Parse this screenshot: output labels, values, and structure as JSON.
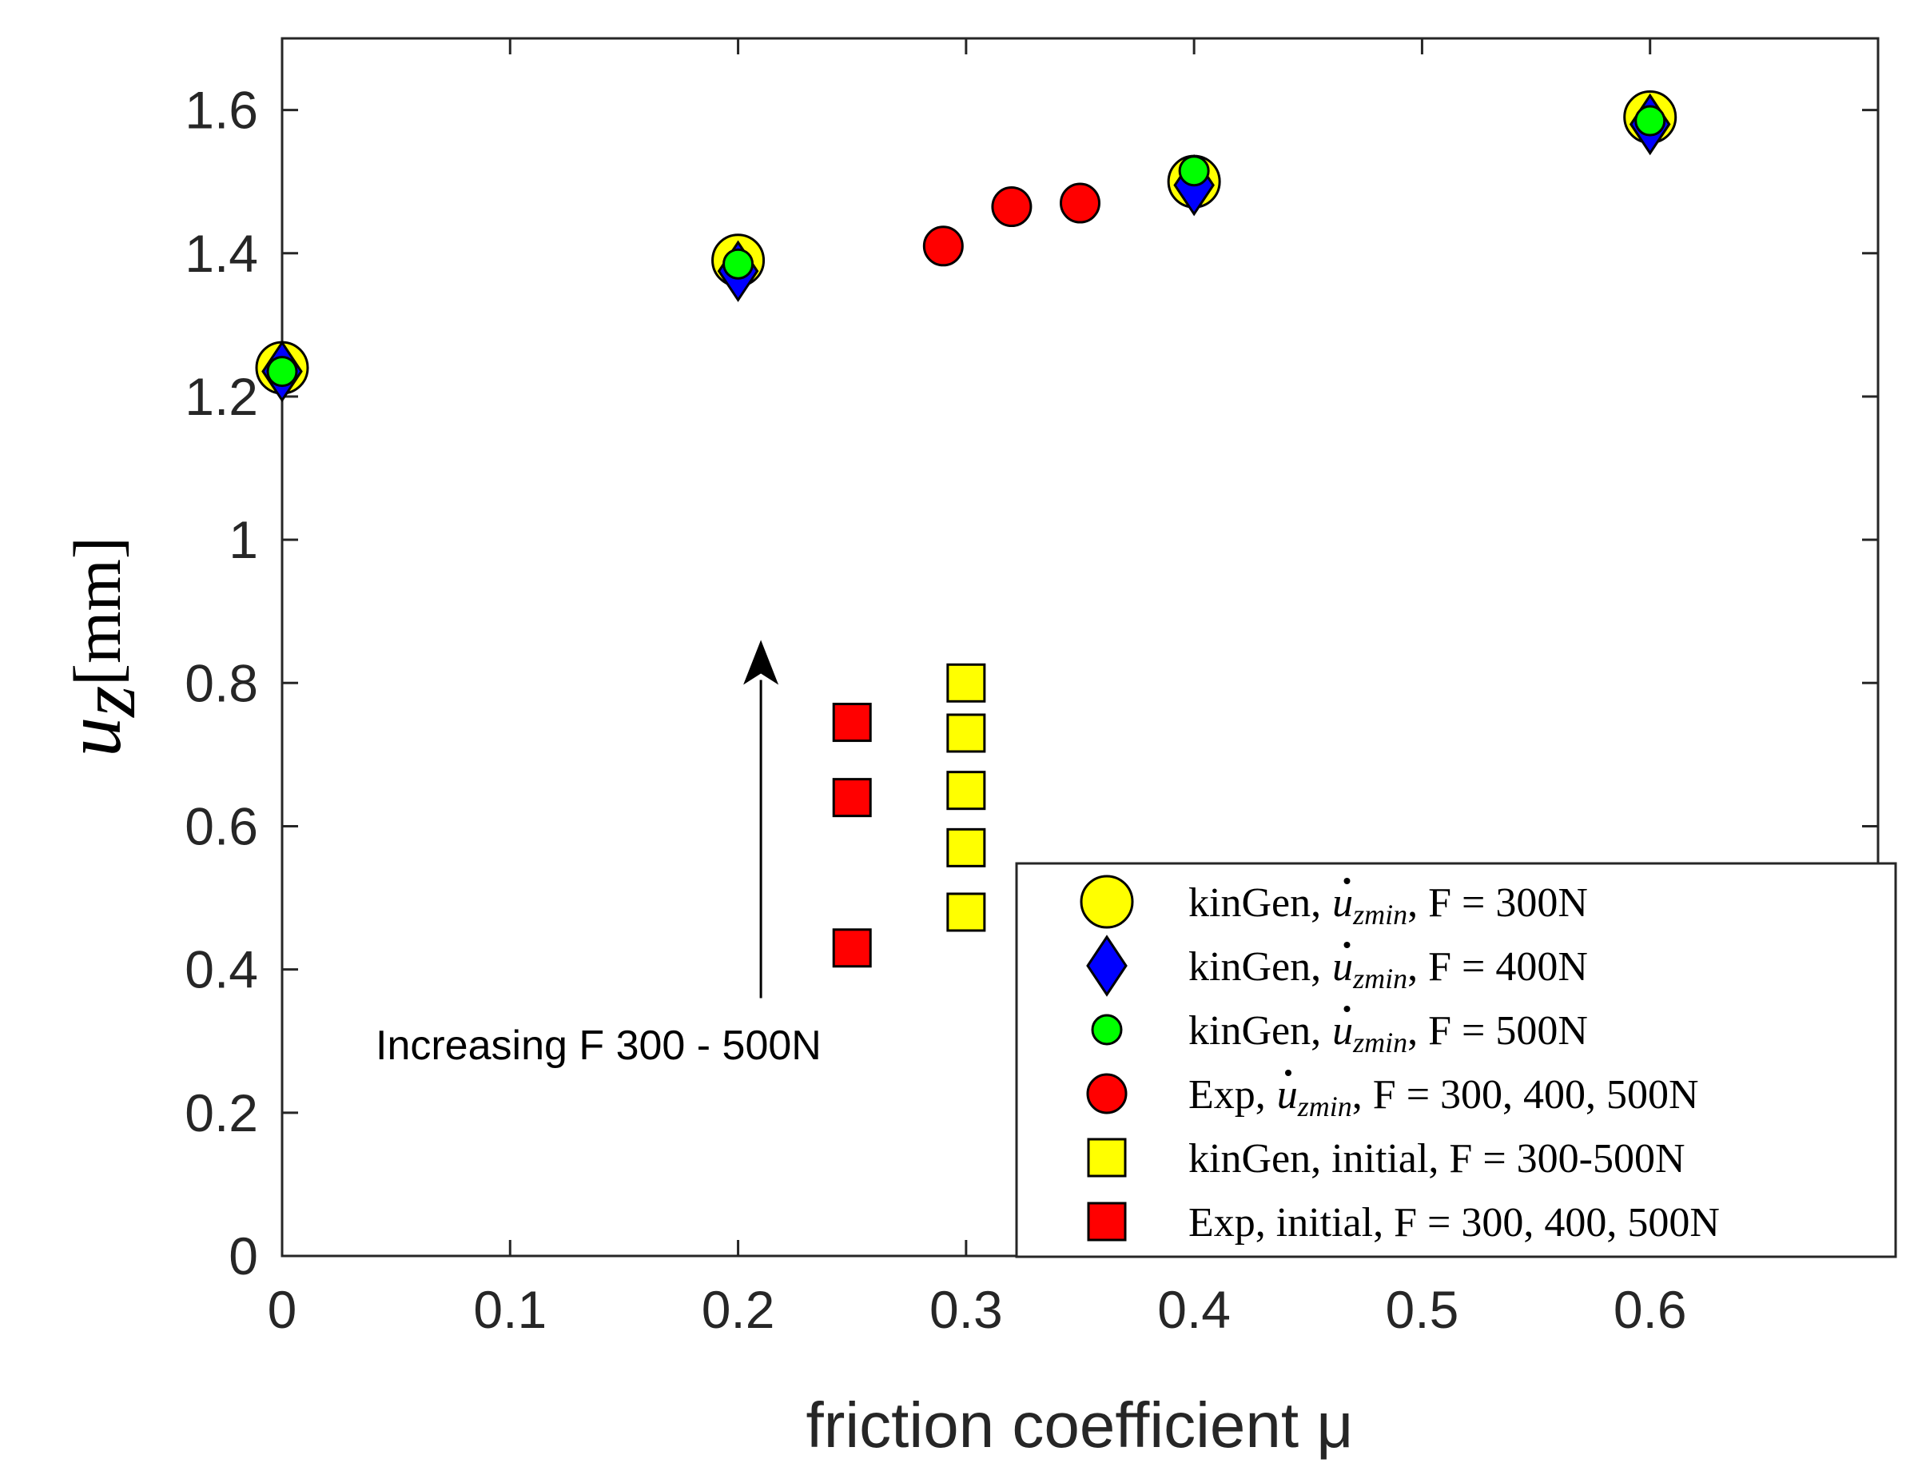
{
  "chart_data": {
    "type": "scatter",
    "xlabel": "friction coefficient μ",
    "ylabel": {
      "symbol": "u",
      "subscript": "z",
      "unit": "[mm]"
    },
    "xlim": [
      0,
      0.7
    ],
    "ylim": [
      0,
      1.7
    ],
    "xticks": [
      "0",
      "0.1",
      "0.2",
      "0.3",
      "0.4",
      "0.5",
      "0.6"
    ],
    "yticks": [
      "0",
      "0.2",
      "0.4",
      "0.6",
      "0.8",
      "1",
      "1.2",
      "1.4",
      "1.6"
    ],
    "annotation": "Increasing F 300 - 500N",
    "arrow": {
      "x": 0.21,
      "y_from": 0.36,
      "y_to": 0.86
    },
    "series": [
      {
        "name": "kinGen, u̇zmin, F = 300N",
        "marker": "circle-large",
        "color": "#ffff00",
        "points": [
          [
            0.0,
            1.24
          ],
          [
            0.2,
            1.39
          ],
          [
            0.4,
            1.5
          ],
          [
            0.6,
            1.59
          ]
        ]
      },
      {
        "name": "kinGen, u̇zmin, F = 400N",
        "marker": "diamond",
        "color": "#0000ff",
        "points": [
          [
            0.0,
            1.235
          ],
          [
            0.2,
            1.375
          ],
          [
            0.4,
            1.495
          ],
          [
            0.6,
            1.58
          ]
        ]
      },
      {
        "name": "kinGen, u̇zmin, F = 500N",
        "marker": "circle-small",
        "color": "#00ff00",
        "points": [
          [
            0.0,
            1.235
          ],
          [
            0.2,
            1.385
          ],
          [
            0.4,
            1.515
          ],
          [
            0.6,
            1.585
          ]
        ]
      },
      {
        "name": "Exp, u̇zmin, F = 300, 400, 500N",
        "marker": "circle",
        "color": "#ff0000",
        "points": [
          [
            0.29,
            1.41
          ],
          [
            0.32,
            1.465
          ],
          [
            0.35,
            1.47
          ]
        ]
      },
      {
        "name": "kinGen, initial, F = 300-500N",
        "marker": "square",
        "color": "#ffff00",
        "points": [
          [
            0.3,
            0.48
          ],
          [
            0.3,
            0.57
          ],
          [
            0.3,
            0.65
          ],
          [
            0.3,
            0.73
          ],
          [
            0.3,
            0.8
          ]
        ]
      },
      {
        "name": "Exp, initial, F = 300, 400, 500N",
        "marker": "square",
        "color": "#ff0000",
        "points": [
          [
            0.25,
            0.43
          ],
          [
            0.25,
            0.64
          ],
          [
            0.25,
            0.745
          ]
        ]
      }
    ],
    "legend": {
      "location": "bottom-right",
      "entries": [
        {
          "prefix": "kinGen,",
          "var": "u",
          "sub": "zmin",
          "suffix": ", F = 300N"
        },
        {
          "prefix": "kinGen,",
          "var": "u",
          "sub": "zmin",
          "suffix": ", F = 400N"
        },
        {
          "prefix": "kinGen,",
          "var": "u",
          "sub": "zmin",
          "suffix": ", F = 500N"
        },
        {
          "prefix": "Exp,",
          "var": "u",
          "sub": "zmin",
          "suffix": ", F = 300, 400, 500N"
        },
        {
          "prefix": "kinGen, initial, F = 300-500N",
          "var": "",
          "sub": "",
          "suffix": ""
        },
        {
          "prefix": "Exp, initial, F = 300, 400, 500N",
          "var": "",
          "sub": "",
          "suffix": ""
        }
      ]
    }
  }
}
